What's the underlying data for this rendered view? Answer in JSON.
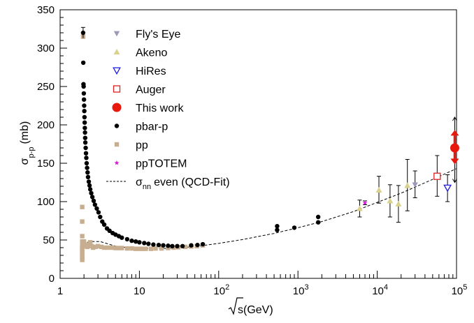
{
  "chart_data": {
    "type": "scatter",
    "xlabel_root": "√",
    "xlabel": "s(GeV)",
    "ylabel_main": "σ",
    "ylabel_sub": "p-p",
    "ylabel_unit": "(mb)",
    "xscale": "log",
    "xlim": [
      1,
      100000
    ],
    "ylim": [
      0,
      350
    ],
    "x_ticks": [
      {
        "value": 1,
        "label": "1"
      },
      {
        "value": 10,
        "label": "10"
      },
      {
        "value": 100,
        "base": "10",
        "exp": "2"
      },
      {
        "value": 1000,
        "base": "10",
        "exp": "3"
      },
      {
        "value": 10000,
        "base": "10",
        "exp": "4"
      },
      {
        "value": 100000,
        "base": "10",
        "exp": "5"
      }
    ],
    "y_ticks": [
      0,
      50,
      100,
      150,
      200,
      250,
      300,
      350
    ],
    "legend_position": "top-left",
    "colors": {
      "flyseye": "#9a9ab8",
      "akeno": "#d8d28e",
      "hires": "#1a1ae0",
      "auger": "#e02020",
      "thiswork": "#e8180c",
      "pbarp": "#000000",
      "pp": "#c8ae90",
      "pptotem": "#d81ad8",
      "fit": "#000000"
    },
    "legend": [
      {
        "key": "flyseye",
        "label": "Fly's Eye",
        "marker": "triangle-down"
      },
      {
        "key": "akeno",
        "label": "Akeno",
        "marker": "triangle-up"
      },
      {
        "key": "hires",
        "label": "HiRes",
        "marker": "triangle-down-open"
      },
      {
        "key": "auger",
        "label": "Auger",
        "marker": "square-open"
      },
      {
        "key": "thiswork",
        "label": "This work",
        "marker": "circle-big"
      },
      {
        "key": "pbarp",
        "label": "pbar-p",
        "marker": "circle"
      },
      {
        "key": "pp",
        "label": "pp",
        "marker": "square"
      },
      {
        "key": "pptotem",
        "label": "ppTOTEM",
        "marker": "star"
      },
      {
        "key": "fit",
        "label_main": "σ",
        "label_sub": "nn",
        "label_rest": "even (QCD-Fit)",
        "marker": "dashed-line"
      }
    ],
    "series": [
      {
        "key": "pbarp",
        "points": [
          [
            1.95,
            320
          ],
          [
            1.96,
            281
          ],
          [
            1.97,
            253
          ],
          [
            1.98,
            250
          ],
          [
            1.99,
            241
          ],
          [
            2.0,
            233
          ],
          [
            2.01,
            225
          ],
          [
            2.02,
            218
          ],
          [
            2.03,
            210
          ],
          [
            2.04,
            203
          ],
          [
            2.05,
            196
          ],
          [
            2.06,
            190
          ],
          [
            2.07,
            183
          ],
          [
            2.08,
            177
          ],
          [
            2.1,
            170
          ],
          [
            2.12,
            163
          ],
          [
            2.14,
            157
          ],
          [
            2.16,
            150
          ],
          [
            2.19,
            144
          ],
          [
            2.22,
            138
          ],
          [
            2.25,
            132
          ],
          [
            2.3,
            126
          ],
          [
            2.35,
            121
          ],
          [
            2.4,
            116
          ],
          [
            2.47,
            111
          ],
          [
            2.55,
            106
          ],
          [
            2.65,
            101
          ],
          [
            2.75,
            96
          ],
          [
            2.9,
            91
          ],
          [
            3.05,
            86
          ],
          [
            3.2,
            80
          ],
          [
            3.4,
            74
          ],
          [
            3.6,
            70
          ],
          [
            3.9,
            65
          ],
          [
            4.2,
            62
          ],
          [
            4.6,
            59
          ],
          [
            5.0,
            57
          ],
          [
            5.5,
            55
          ],
          [
            6.0,
            53
          ],
          [
            7.0,
            51
          ],
          [
            8.0,
            49
          ],
          [
            9.0,
            48
          ],
          [
            10.0,
            47
          ],
          [
            11.5,
            46
          ],
          [
            13.0,
            45
          ],
          [
            15.0,
            44
          ],
          [
            17.5,
            43.5
          ],
          [
            20.0,
            43
          ],
          [
            23.0,
            42.5
          ],
          [
            26.0,
            42
          ],
          [
            30.0,
            42
          ],
          [
            35.0,
            42
          ],
          [
            45.0,
            43
          ],
          [
            54.0,
            43.5
          ],
          [
            63.0,
            44.5
          ],
          [
            546,
            63
          ],
          [
            546,
            68
          ],
          [
            900,
            66
          ],
          [
            1800,
            73
          ],
          [
            1800,
            80
          ]
        ],
        "error_segments": [
          [
            1.95,
            313,
            327
          ]
        ]
      },
      {
        "key": "pp",
        "points": [
          [
            1.9,
            93
          ],
          [
            1.9,
            74
          ],
          [
            1.9,
            55
          ],
          [
            1.9,
            48
          ],
          [
            1.9,
            43
          ],
          [
            1.9,
            40
          ],
          [
            1.9,
            38
          ],
          [
            1.9,
            35
          ],
          [
            1.9,
            32
          ],
          [
            1.9,
            29
          ],
          [
            1.9,
            26
          ],
          [
            1.9,
            24
          ],
          [
            1.95,
            315
          ],
          [
            2.0,
            48
          ],
          [
            2.05,
            44
          ],
          [
            2.1,
            42
          ],
          [
            2.2,
            41
          ],
          [
            2.3,
            44
          ],
          [
            2.4,
            47
          ],
          [
            2.5,
            42
          ],
          [
            2.6,
            40
          ],
          [
            2.8,
            41
          ],
          [
            3.0,
            42
          ],
          [
            3.3,
            41
          ],
          [
            3.6,
            40
          ],
          [
            4.0,
            40
          ],
          [
            4.5,
            40
          ],
          [
            5.0,
            39.5
          ],
          [
            5.5,
            39.5
          ],
          [
            6.0,
            39.5
          ],
          [
            7.0,
            39
          ],
          [
            8.0,
            39
          ],
          [
            9.0,
            38.5
          ],
          [
            10.0,
            38.5
          ],
          [
            11.0,
            38.5
          ],
          [
            12.0,
            38.5
          ],
          [
            14.0,
            38.5
          ],
          [
            16.0,
            39
          ],
          [
            19.0,
            39
          ],
          [
            23.0,
            39.5
          ],
          [
            27.0,
            40
          ],
          [
            31.0,
            40.5
          ],
          [
            38.0,
            41
          ],
          [
            45.0,
            41.5
          ],
          [
            53.0,
            42
          ],
          [
            63.0,
            43
          ]
        ]
      },
      {
        "key": "akeno",
        "points": [
          [
            6000,
            91,
            80,
            102
          ],
          [
            10500,
            115,
            98,
            133
          ],
          [
            14500,
            101,
            80,
            122
          ],
          [
            18500,
            97,
            73,
            121
          ],
          [
            24000,
            121,
            88,
            155
          ]
        ]
      },
      {
        "key": "flyseye",
        "points": [
          [
            30000,
            122,
            105,
            140
          ]
        ]
      },
      {
        "key": "auger",
        "points": [
          [
            57000,
            133,
            107,
            160
          ]
        ]
      },
      {
        "key": "hires",
        "points": [
          [
            77000,
            118,
            100,
            135
          ]
        ]
      },
      {
        "key": "pptotem",
        "points": [
          [
            7000,
            98.5,
            96,
            101
          ]
        ]
      },
      {
        "key": "thiswork",
        "points": [
          [
            95000,
            170,
            156,
            186
          ]
        ],
        "outer_error": [
          95000,
          125,
          210
        ]
      }
    ],
    "fit_curve": [
      [
        2.2,
        47
      ],
      [
        2.6,
        48
      ],
      [
        3.2,
        48
      ],
      [
        4.0,
        45
      ],
      [
        5.0,
        42
      ],
      [
        7.0,
        40
      ],
      [
        10,
        39
      ],
      [
        15,
        38.8
      ],
      [
        20,
        38.9
      ],
      [
        30,
        39.6
      ],
      [
        50,
        41.5
      ],
      [
        100,
        45.5
      ],
      [
        200,
        50.5
      ],
      [
        500,
        58.5
      ],
      [
        1000,
        66
      ],
      [
        2000,
        74
      ],
      [
        5000,
        87
      ],
      [
        10000,
        99
      ],
      [
        20000,
        111
      ],
      [
        50000,
        129
      ],
      [
        100000,
        143
      ]
    ]
  }
}
